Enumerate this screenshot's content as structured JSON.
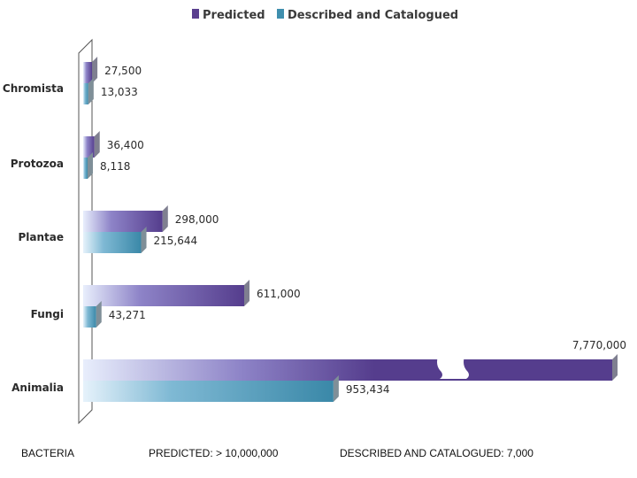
{
  "chart_data": {
    "type": "bar",
    "orientation": "horizontal",
    "title": "",
    "categories": [
      "Chromista",
      "Protozoa",
      "Plantae",
      "Fungi",
      "Animalia"
    ],
    "series": [
      {
        "name": "Predicted",
        "color": "#5a3f8f",
        "values": [
          27500,
          36400,
          298000,
          611000,
          7770000
        ],
        "labels": [
          "27,500",
          "36,400",
          "298,000",
          "611,000",
          "7,770,000"
        ]
      },
      {
        "name": "Described and Catalogued",
        "color": "#3f8fae",
        "values": [
          13033,
          8118,
          215644,
          43271,
          953434
        ],
        "labels": [
          "13,033",
          "8,118",
          "215,644",
          "43,271",
          "953,434"
        ]
      }
    ],
    "axis_break": {
      "category": "Animalia",
      "series": "Predicted"
    },
    "legend_position": "top"
  },
  "footer": {
    "group": "BACTERIA",
    "predicted": "PREDICTED: > 10,000,000",
    "described": "DESCRIBED AND CATALOGUED: 7,000"
  }
}
